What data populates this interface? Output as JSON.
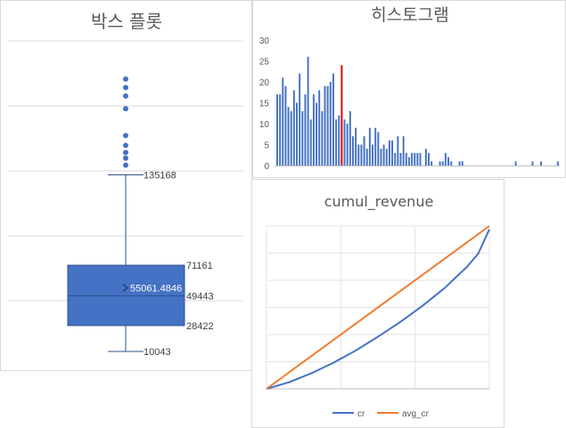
{
  "chart_data": [
    {
      "id": "boxplot",
      "type": "box",
      "title": "박스 플롯",
      "ylim": [
        0,
        230000
      ],
      "grid": true,
      "stats": {
        "min": 10043,
        "q1": 28422,
        "median": 49443,
        "mean": 55061.4846,
        "q3": 71161,
        "upper_whisker": 135168
      },
      "labels": {
        "min": "10043",
        "q1": "28422",
        "median": "49443",
        "mean": "55061.4846",
        "q3": "71161",
        "upper_whisker": "135168"
      },
      "outliers": [
        142000,
        147000,
        151000,
        156000,
        163000,
        182000,
        191000,
        197000,
        203000
      ],
      "color": "#4472c4"
    },
    {
      "id": "histogram",
      "type": "bar",
      "title": "히스토그램",
      "yticks": [
        "0",
        "5",
        "10",
        "15",
        "20",
        "25",
        "30"
      ],
      "ylim": [
        0,
        30
      ],
      "grid": false,
      "color": "#4472c4",
      "highlight_color": "#e00000",
      "highlight_index": 23,
      "values": [
        17,
        17,
        21,
        19,
        14,
        13,
        18,
        15,
        22,
        13,
        17,
        26,
        11,
        17,
        15,
        18,
        13,
        19,
        19,
        20,
        22,
        11,
        12,
        24,
        11,
        10,
        13,
        7,
        9,
        5,
        5,
        7,
        4,
        9,
        5,
        9,
        8,
        4,
        5,
        4,
        6,
        6,
        3,
        7,
        3,
        7,
        3,
        2,
        3,
        3,
        3,
        3,
        0,
        4,
        3,
        1,
        0,
        0,
        1,
        1,
        3,
        2,
        1,
        0,
        0,
        1,
        1,
        0,
        0,
        0,
        0,
        0,
        0,
        0,
        0,
        0,
        0,
        0,
        0,
        0,
        0,
        0,
        0,
        0,
        0,
        1,
        0,
        0,
        0,
        0,
        0,
        1,
        0,
        0,
        1,
        0,
        0,
        0,
        0,
        0,
        1
      ]
    },
    {
      "id": "cumul",
      "type": "line",
      "title": "cumul_revenue",
      "xlim": [
        0,
        1
      ],
      "ylim": [
        0,
        1
      ],
      "grid": true,
      "series": [
        {
          "name": "cr",
          "color": "#4472c4",
          "x": [
            0,
            0.1,
            0.2,
            0.3,
            0.4,
            0.5,
            0.6,
            0.7,
            0.8,
            0.9,
            0.95,
            1
          ],
          "y": [
            0,
            0.04,
            0.095,
            0.16,
            0.235,
            0.32,
            0.41,
            0.51,
            0.62,
            0.75,
            0.83,
            0.98
          ]
        },
        {
          "name": "avg_cr",
          "color": "#ed7d31",
          "x": [
            0,
            1
          ],
          "y": [
            0,
            1
          ]
        }
      ],
      "legend": "bottom"
    }
  ]
}
